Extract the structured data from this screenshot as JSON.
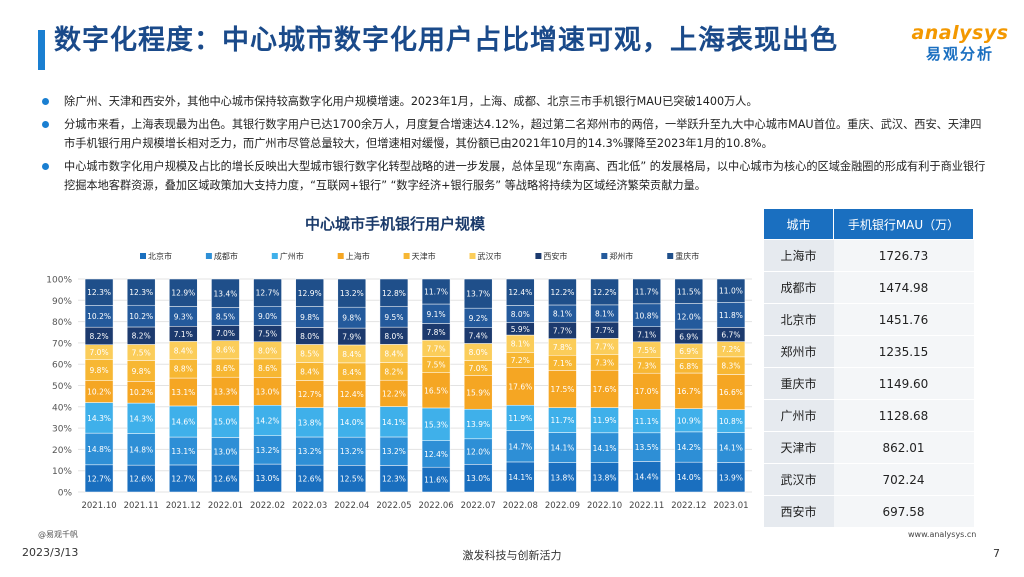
{
  "slide": {
    "title": "数字化程度：中心城市数字化用户占比增速可观，上海表现出色",
    "logo_en": "analysys",
    "logo_cn": "易观分析",
    "bullets": [
      "除广州、天津和西安外，其他中心城市保持较高数字化用户规模增速。2023年1月，上海、成都、北京三市手机银行MAU已突破1400万人。",
      "分城市来看，上海表现最为出色。其银行数字用户已达1700余万人，月度复合增速达4.12%，超过第二名郑州市的两倍，一举跃升至九大中心城市MAU首位。重庆、武汉、西安、天津四市手机银行用户规模增长相对乏力，而广州市尽管总量较大，但增速相对缓慢，其份额已由2021年10月的14.3%骤降至2023年1月的10.8%。",
      "中心城市数字化用户规模及占比的增长反映出大型城市银行数字化转型战略的进一步发展，总体呈现“东南高、西北低” 的发展格局，以中心城市为核心的区域金融圈的形成有利于商业银行挖掘本地客群资源，叠加区域政策加大支持力度，“互联网+银行” “数字经济+银行服务” 等战略将持续为区域经济繁荣贡献力量。"
    ],
    "source": "@易观千帆",
    "website": "www.analysys.cn",
    "date": "2023/3/13",
    "slogan": "激发科技与创新活力",
    "page_number": "7"
  },
  "colors": {
    "accent": "#1a7fd1",
    "北京市": "#1a6fbf",
    "成都市": "#2e8fd6",
    "广州市": "#3fb0ea",
    "上海市": "#f5a623",
    "天津市": "#f7b733",
    "武汉市": "#fbcd5a",
    "西安市": "#1c3a6e",
    "郑州市": "#245a9c",
    "重庆市": "#1f4f8a"
  },
  "table": {
    "headers": [
      "城市",
      "手机银行MAU（万）"
    ],
    "rows": [
      [
        "上海市",
        "1726.73"
      ],
      [
        "成都市",
        "1474.98"
      ],
      [
        "北京市",
        "1451.76"
      ],
      [
        "郑州市",
        "1235.15"
      ],
      [
        "重庆市",
        "1149.60"
      ],
      [
        "广州市",
        "1128.68"
      ],
      [
        "天津市",
        "862.01"
      ],
      [
        "武汉市",
        "702.24"
      ],
      [
        "西安市",
        "697.58"
      ]
    ]
  },
  "chart_data": {
    "type": "bar",
    "stacked": true,
    "percent": true,
    "title": "中心城市手机银行用户规模",
    "categories": [
      "2021.10",
      "2021.11",
      "2021.12",
      "2022.01",
      "2022.02",
      "2022.03",
      "2022.04",
      "2022.05",
      "2022.06",
      "2022.07",
      "2022.08",
      "2022.09",
      "2022.10",
      "2022.11",
      "2022.12",
      "2023.01"
    ],
    "y_ticks": [
      "0%",
      "10%",
      "20%",
      "30%",
      "40%",
      "50%",
      "60%",
      "70%",
      "80%",
      "90%",
      "100%"
    ],
    "ylim": [
      0,
      100
    ],
    "legend_position": "top",
    "series": [
      {
        "name": "北京市",
        "values": [
          12.7,
          12.6,
          12.7,
          12.6,
          13.0,
          12.6,
          12.5,
          12.3,
          11.6,
          13.0,
          14.1,
          13.8,
          13.8,
          14.4,
          14.0,
          13.9
        ]
      },
      {
        "name": "成都市",
        "values": [
          14.8,
          14.8,
          13.1,
          13.0,
          13.2,
          13.2,
          13.2,
          13.2,
          12.4,
          12.0,
          14.7,
          14.1,
          14.1,
          13.5,
          14.2,
          14.1
        ]
      },
      {
        "name": "广州市",
        "values": [
          14.3,
          14.3,
          14.6,
          15.0,
          14.2,
          13.8,
          14.0,
          14.1,
          15.3,
          13.9,
          11.9,
          11.7,
          11.9,
          11.1,
          10.9,
          10.8
        ]
      },
      {
        "name": "上海市",
        "values": [
          10.2,
          10.2,
          13.1,
          13.3,
          13.0,
          12.7,
          12.4,
          12.2,
          16.5,
          15.9,
          17.6,
          17.5,
          17.6,
          17.0,
          16.7,
          16.6
        ]
      },
      {
        "name": "天津市",
        "values": [
          9.8,
          9.8,
          8.8,
          8.6,
          8.6,
          8.4,
          8.4,
          8.2,
          7.5,
          7.0,
          7.2,
          7.1,
          7.3,
          7.3,
          6.8,
          8.3
        ]
      },
      {
        "name": "武汉市",
        "values": [
          7.0,
          7.5,
          8.4,
          8.6,
          8.0,
          8.5,
          8.4,
          8.4,
          7.7,
          8.0,
          8.1,
          7.8,
          7.7,
          7.5,
          6.9,
          7.2
        ]
      },
      {
        "name": "西安市",
        "values": [
          8.2,
          8.2,
          7.1,
          7.0,
          7.5,
          8.0,
          7.9,
          8.0,
          7.8,
          7.4,
          5.9,
          7.7,
          7.7,
          7.1,
          6.9,
          6.7
        ]
      },
      {
        "name": "郑州市",
        "values": [
          10.2,
          10.2,
          9.3,
          8.5,
          9.0,
          9.8,
          9.8,
          9.5,
          9.1,
          9.2,
          8.0,
          8.1,
          8.1,
          10.8,
          12.0,
          11.8
        ]
      },
      {
        "name": "重庆市",
        "values": [
          12.3,
          12.3,
          12.9,
          13.4,
          12.7,
          12.9,
          13.2,
          12.8,
          11.7,
          13.7,
          12.4,
          12.2,
          12.2,
          11.7,
          11.5,
          11.0
        ]
      }
    ]
  }
}
